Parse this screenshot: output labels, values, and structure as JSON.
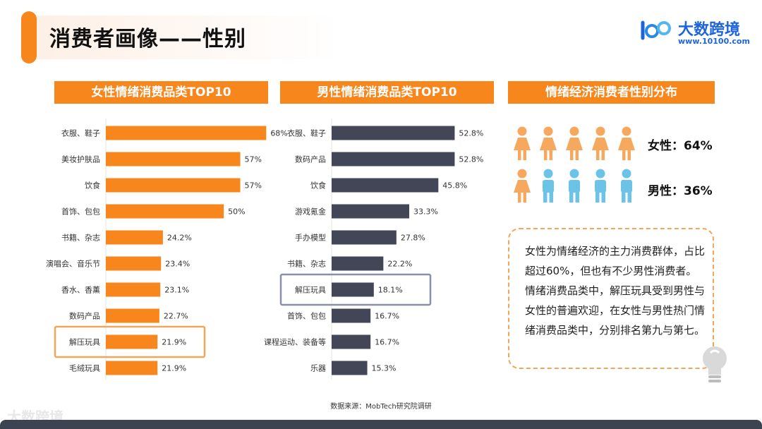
{
  "header": {
    "title": "消费者画像——性别"
  },
  "logo": {
    "name": "大数跨境",
    "url": "www.10100.com"
  },
  "chart_data": [
    {
      "type": "bar",
      "orientation": "horizontal",
      "title": "女性情绪消费品类TOP10",
      "categories": [
        "衣服、鞋子",
        "美妆护肤品",
        "饮食",
        "首饰、包包",
        "书籍、杂志",
        "演唱会、音乐节",
        "香水、香薰",
        "数码产品",
        "解压玩具",
        "毛绒玩具"
      ],
      "values": [
        68,
        57,
        57,
        50,
        24.2,
        23.4,
        23.1,
        22.7,
        21.9,
        21.9
      ],
      "value_labels": [
        "68%",
        "57%",
        "57%",
        "50%",
        "24.2%",
        "23.4%",
        "23.1%",
        "22.7%",
        "21.9%",
        "21.9%"
      ],
      "highlight": "解压玩具",
      "color": "#f7861c",
      "xlim": [
        0,
        70
      ]
    },
    {
      "type": "bar",
      "orientation": "horizontal",
      "title": "男性情绪消费品类TOP10",
      "categories": [
        "衣服、鞋子",
        "数码产品",
        "饮食",
        "游戏氪金",
        "手办模型",
        "书籍、杂志",
        "解压玩具",
        "首饰、包包",
        "课程运动、装备等",
        "乐器"
      ],
      "values": [
        52.8,
        52.8,
        45.8,
        33.3,
        27.8,
        22.2,
        18.1,
        16.7,
        16.7,
        15.3
      ],
      "value_labels": [
        "52.8%",
        "52.8%",
        "45.8%",
        "33.3%",
        "27.8%",
        "22.2%",
        "18.1%",
        "16.7%",
        "16.7%",
        "15.3%"
      ],
      "highlight": "解压玩具",
      "color": "#424657",
      "xlim": [
        0,
        56
      ]
    },
    {
      "type": "pie",
      "title": "情绪经济消费者性别分布",
      "categories": [
        "女性",
        "男性"
      ],
      "values": [
        64,
        36
      ],
      "labels": [
        "女性：64%",
        "男性：36%"
      ],
      "colors": [
        "#f6a85e",
        "#6bc3e8"
      ]
    }
  ],
  "note": "女性为情绪经济的主力消费群体，占比超过60%，但也有不少男性消费者。情绪消费品类中，解压玩具受到男性与女性的普遍欢迎，在女性与男性热门情绪消费品类中，分别排名第九与第七。",
  "source": "数据来源：MobTech研究院调研",
  "footer": {
    "logo": "大数跨境"
  },
  "colors": {
    "accent": "#f7861c",
    "male_bar": "#424657",
    "highlight_border": "#8a90a8"
  }
}
